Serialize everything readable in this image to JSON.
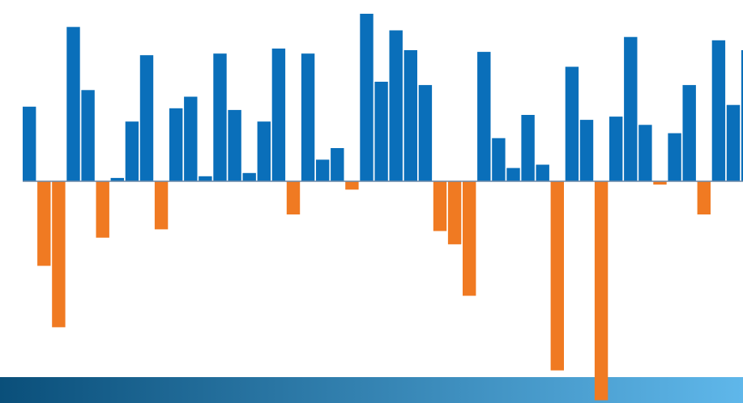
{
  "chart_data": {
    "type": "bar",
    "title": "",
    "xlabel": "",
    "ylabel": "",
    "ylim": [
      -13.5,
      10.0
    ],
    "grid": false,
    "legend": "none",
    "colors": {
      "positive": "#0a6fba",
      "negative": "#f07a22",
      "baseline": "#6c88a8",
      "band_start": "#0a4f7a",
      "band_end": "#5fb7ea"
    },
    "series": [
      {
        "values": [
          4.5,
          -5.1,
          -8.8,
          9.3,
          5.5,
          -3.4,
          0.2,
          3.6,
          7.6,
          -2.9,
          4.4,
          5.1,
          0.3,
          7.7,
          4.3,
          0.5,
          3.6,
          8.0,
          -2.0,
          7.7,
          1.3,
          2.0,
          -0.5,
          10.1,
          6.0,
          9.1,
          7.9,
          5.8,
          -3.0,
          -3.8,
          -6.9,
          7.8,
          2.6,
          0.8,
          4.0,
          1.0,
          -11.4,
          6.9,
          3.7,
          -13.2,
          3.9,
          8.7,
          3.4,
          -0.2,
          2.9,
          5.8,
          -2.0,
          8.5,
          4.6,
          7.9
        ]
      }
    ]
  }
}
